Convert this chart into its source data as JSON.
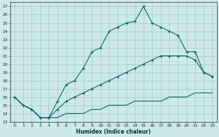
{
  "xlabel": "Humidex (Indice chaleur)",
  "bg_color": "#cde8e8",
  "grid_color": "#a8cccc",
  "line_color": "#006666",
  "xlim": [
    -0.5,
    23.5
  ],
  "ylim": [
    13,
    27.5
  ],
  "yticks": [
    13,
    14,
    15,
    16,
    17,
    18,
    19,
    20,
    21,
    22,
    23,
    24,
    25,
    26,
    27
  ],
  "xticks": [
    0,
    1,
    2,
    3,
    4,
    5,
    6,
    7,
    8,
    9,
    10,
    11,
    12,
    13,
    14,
    15,
    16,
    17,
    18,
    19,
    20,
    21,
    22,
    23
  ],
  "line1_x": [
    0,
    1,
    2,
    3,
    4,
    5,
    6,
    7,
    8,
    9,
    10,
    11,
    12,
    13,
    14,
    15,
    16,
    17,
    18,
    19,
    20,
    21,
    22,
    23
  ],
  "line1_y": [
    16,
    15,
    14.5,
    13.5,
    13.5,
    15.5,
    17.5,
    18,
    19.5,
    21.5,
    22,
    24,
    24.5,
    25,
    25.2,
    27,
    25,
    24.5,
    24,
    23.5,
    21.5,
    21.5,
    19,
    18.5
  ],
  "line2_x": [
    0,
    1,
    2,
    3,
    4,
    5,
    6,
    7,
    8,
    9,
    10,
    11,
    12,
    13,
    14,
    15,
    16,
    17,
    18,
    19,
    20,
    21,
    22,
    23
  ],
  "line2_y": [
    16,
    15,
    14.5,
    13.5,
    13.5,
    14.5,
    15.5,
    16,
    16.5,
    17,
    17.5,
    18,
    18.5,
    19,
    19.5,
    20,
    20.5,
    21,
    21,
    21,
    21,
    20.5,
    19,
    18.5
  ],
  "line3_x": [
    0,
    1,
    2,
    3,
    4,
    5,
    6,
    7,
    8,
    9,
    10,
    11,
    12,
    13,
    14,
    15,
    16,
    17,
    18,
    19,
    20,
    21,
    22,
    23
  ],
  "line3_y": [
    16,
    15,
    14.5,
    13.5,
    13.5,
    13.5,
    14,
    14,
    14,
    14.5,
    14.5,
    15,
    15,
    15,
    15.5,
    15.5,
    15.5,
    15.5,
    16,
    16,
    16,
    16.5,
    16.5,
    16.5
  ]
}
